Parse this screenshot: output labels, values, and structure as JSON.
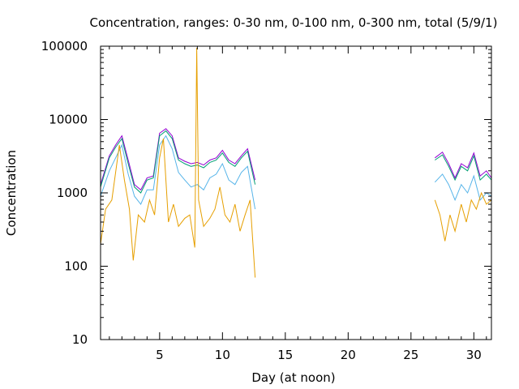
{
  "chart_data": {
    "type": "line",
    "title": "Concentration, ranges: 0-30 nm, 0-100 nm, 0-300 nm, total (5/9/1)",
    "xlabel": "Day (at noon)",
    "ylabel": "Concentration",
    "xlim": [
      0.3,
      31.4
    ],
    "ylim": [
      10,
      100000
    ],
    "y_scale": "log",
    "x_ticks": [
      5,
      10,
      15,
      20,
      25,
      30
    ],
    "y_ticks": [
      10,
      100,
      1000,
      10000,
      100000
    ],
    "x_tick_labels": [
      "5",
      "10",
      "15",
      "20",
      "25",
      "30"
    ],
    "y_tick_labels": [
      "10",
      "100",
      "1000",
      "10000",
      "100000"
    ],
    "grid": false,
    "legend": "none",
    "series": [
      {
        "color": "#9400d3",
        "x": [
          0.3,
          1.0,
          1.5,
          2.0,
          2.5,
          3.0,
          3.5,
          4.0,
          4.5,
          5.0,
          5.5,
          6.0,
          6.5,
          7.0,
          7.5,
          8.0,
          8.5,
          9.0,
          9.5,
          10.0,
          10.5,
          11.0,
          11.5,
          12.0,
          12.6,
          26.9,
          27.5,
          28.0,
          28.5,
          29.0,
          29.5,
          30.0,
          30.5,
          31.0,
          31.4
        ],
        "y": [
          1300,
          3200,
          4500,
          6000,
          2800,
          1300,
          1100,
          1600,
          1700,
          6500,
          7500,
          6000,
          3000,
          2700,
          2500,
          2600,
          2400,
          2800,
          3000,
          3800,
          2800,
          2500,
          3200,
          4000,
          1500,
          3000,
          3600,
          2500,
          1600,
          2500,
          2200,
          3500,
          1700,
          2000,
          1600
        ]
      },
      {
        "color": "#009e73",
        "x": [
          0.3,
          1.0,
          1.5,
          2.0,
          2.5,
          3.0,
          3.5,
          4.0,
          4.5,
          5.0,
          5.5,
          6.0,
          6.5,
          7.0,
          7.5,
          8.0,
          8.5,
          9.0,
          9.5,
          10.0,
          10.5,
          11.0,
          11.5,
          12.0,
          12.6,
          26.9,
          27.5,
          28.0,
          28.5,
          29.0,
          29.5,
          30.0,
          30.5,
          31.0,
          31.4
        ],
        "y": [
          1200,
          3000,
          4200,
          5500,
          2500,
          1200,
          1000,
          1500,
          1600,
          6000,
          7000,
          5500,
          2800,
          2500,
          2300,
          2400,
          2200,
          2600,
          2800,
          3500,
          2600,
          2300,
          3000,
          3700,
          1300,
          2800,
          3300,
          2300,
          1500,
          2300,
          2000,
          3200,
          1500,
          1800,
          1500
        ]
      },
      {
        "color": "#56b4e9",
        "x": [
          0.3,
          1.0,
          1.5,
          2.0,
          2.5,
          3.0,
          3.5,
          4.0,
          4.5,
          5.0,
          5.5,
          6.0,
          6.5,
          7.0,
          7.5,
          8.0,
          8.5,
          9.0,
          9.5,
          10.0,
          10.5,
          11.0,
          11.5,
          12.0,
          12.6,
          26.9,
          27.5,
          28.0,
          28.5,
          29.0,
          29.5,
          30.0,
          30.5,
          31.0,
          31.4
        ],
        "y": [
          900,
          2000,
          3000,
          4500,
          1800,
          900,
          700,
          1100,
          1100,
          4500,
          6000,
          4000,
          1900,
          1500,
          1200,
          1300,
          1100,
          1600,
          1800,
          2500,
          1500,
          1300,
          1900,
          2300,
          600,
          1400,
          1800,
          1300,
          800,
          1300,
          1000,
          1700,
          800,
          1000,
          900
        ]
      },
      {
        "color": "#e69f00",
        "x": [
          0.3,
          0.7,
          1.2,
          1.8,
          2.2,
          2.6,
          2.9,
          3.3,
          3.8,
          4.2,
          4.6,
          5.0,
          5.3,
          5.7,
          6.1,
          6.5,
          7.0,
          7.4,
          7.8,
          7.95,
          8.1,
          8.5,
          9.0,
          9.4,
          9.8,
          10.2,
          10.6,
          11.0,
          11.4,
          11.8,
          12.2,
          12.6,
          26.9,
          27.3,
          27.7,
          28.1,
          28.5,
          29.0,
          29.4,
          29.8,
          30.2,
          30.6,
          31.0,
          31.4
        ],
        "y": [
          200,
          600,
          800,
          4500,
          1500,
          600,
          120,
          500,
          400,
          800,
          500,
          3000,
          5500,
          400,
          700,
          350,
          450,
          500,
          180,
          95000,
          800,
          350,
          450,
          600,
          1200,
          500,
          400,
          700,
          300,
          500,
          800,
          70,
          800,
          500,
          220,
          500,
          300,
          700,
          400,
          800,
          600,
          1000,
          700,
          800
        ]
      }
    ]
  }
}
